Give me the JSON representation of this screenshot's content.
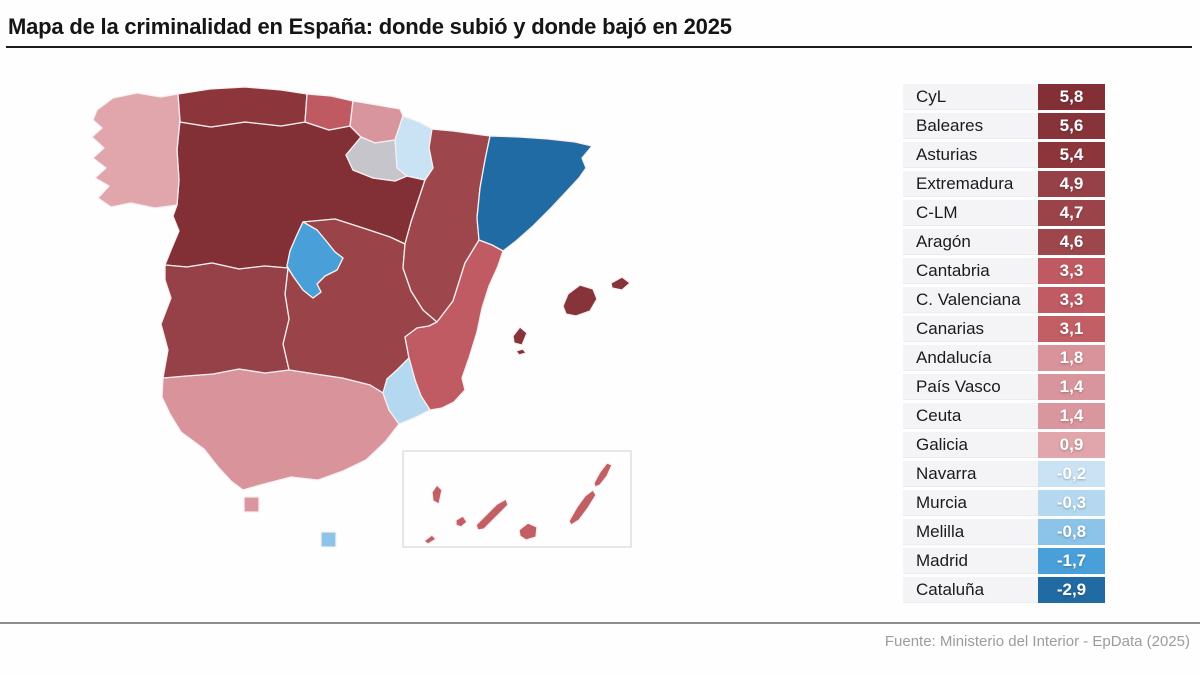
{
  "title": "Mapa de la criminalidad en España: donde subió y donde bajó en 2025",
  "source": "Fuente: Ministerio del Interior - EpData (2025)",
  "regions": [
    {
      "id": "cyl",
      "name": "CyL",
      "value": "5,8",
      "color": "#822f36"
    },
    {
      "id": "baleares",
      "name": "Baleares",
      "value": "5,6",
      "color": "#86333a"
    },
    {
      "id": "asturias",
      "name": "Asturias",
      "value": "5,4",
      "color": "#8c363c"
    },
    {
      "id": "extremadura",
      "name": "Extremadura",
      "value": "4,9",
      "color": "#964147"
    },
    {
      "id": "clm",
      "name": "C-LM",
      "value": "4,7",
      "color": "#9a444a"
    },
    {
      "id": "aragon",
      "name": "Aragón",
      "value": "4,6",
      "color": "#9d464c"
    },
    {
      "id": "cantabria",
      "name": "Cantabria",
      "value": "3,3",
      "color": "#c05a62"
    },
    {
      "id": "valenciana",
      "name": "C. Valenciana",
      "value": "3,3",
      "color": "#c05b63"
    },
    {
      "id": "canarias",
      "name": "Canarias",
      "value": "3,1",
      "color": "#c25f64"
    },
    {
      "id": "andalucia",
      "name": "Andalucía",
      "value": "1,8",
      "color": "#d8939b"
    },
    {
      "id": "pais_vasco",
      "name": "País Vasco",
      "value": "1,4",
      "color": "#d9959d"
    },
    {
      "id": "ceuta",
      "name": "Ceuta",
      "value": "1,4",
      "color": "#da969e"
    },
    {
      "id": "galicia",
      "name": "Galicia",
      "value": "0,9",
      "color": "#e0a6ac"
    },
    {
      "id": "navarra",
      "name": "Navarra",
      "value": "-0,2",
      "color": "#c9e3f5"
    },
    {
      "id": "murcia",
      "name": "Murcia",
      "value": "-0,3",
      "color": "#b3d8f0"
    },
    {
      "id": "melilla",
      "name": "Melilla",
      "value": "-0,8",
      "color": "#8cc3e8"
    },
    {
      "id": "madrid",
      "name": "Madrid",
      "value": "-1,7",
      "color": "#49a0d8"
    },
    {
      "id": "cataluna",
      "name": "Cataluña",
      "value": "-2,9",
      "color": "#206ba3"
    }
  ],
  "map_extra": {
    "la_rioja_color": "#c6c5cb",
    "canary_box_color": "#d8d8dc",
    "border_color": "#f7eff0"
  },
  "chart_data": {
    "type": "choropleth",
    "title": "Mapa de la criminalidad en España: donde subió y donde bajó en 2025",
    "categories": [
      "CyL",
      "Baleares",
      "Asturias",
      "Extremadura",
      "C-LM",
      "Aragón",
      "Cantabria",
      "C. Valenciana",
      "Canarias",
      "Andalucía",
      "País Vasco",
      "Ceuta",
      "Galicia",
      "Navarra",
      "Murcia",
      "Melilla",
      "Madrid",
      "Cataluña"
    ],
    "values": [
      5.8,
      5.6,
      5.4,
      4.9,
      4.7,
      4.6,
      3.3,
      3.3,
      3.1,
      1.8,
      1.4,
      1.4,
      0.9,
      -0.2,
      -0.3,
      -0.8,
      -1.7,
      -2.9
    ],
    "legend_position": "right",
    "source": "Fuente: Ministerio del Interior - EpData (2025)"
  }
}
